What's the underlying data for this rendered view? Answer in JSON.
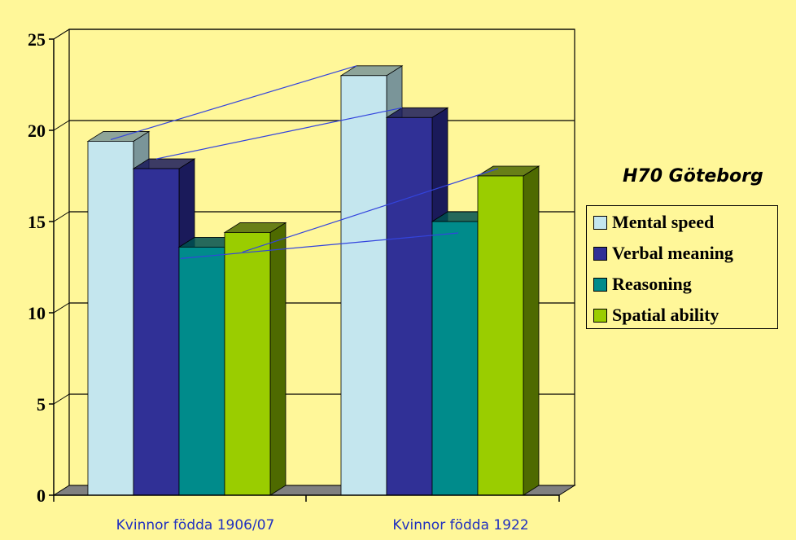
{
  "colors": {
    "background": "#FFF799",
    "gridline": "#000000",
    "trend_line": "#3344DD"
  },
  "chart_data": {
    "type": "bar",
    "title": "H70 Göteborg",
    "categories": [
      "Kvinnor födda 1906/07",
      "Kvinnor födda 1922"
    ],
    "ylim": [
      0,
      25
    ],
    "y_ticks": [
      "0",
      "5",
      "10",
      "15",
      "20",
      "25"
    ],
    "grid": true,
    "legend_position": "right",
    "style": "3d-clustered",
    "series": [
      {
        "name": "Mental speed",
        "values": [
          19.4,
          23.0
        ],
        "color": "#C4E6EE",
        "side_color": "#7A9599"
      },
      {
        "name": "Verbal meaning",
        "values": [
          17.9,
          20.7
        ],
        "color": "#303096",
        "side_color": "#1A1A5A"
      },
      {
        "name": "Reasoning",
        "values": [
          13.6,
          15.0
        ],
        "color": "#008B8B",
        "side_color": "#005050"
      },
      {
        "name": "Spatial ability",
        "values": [
          14.4,
          17.5
        ],
        "color": "#9ACD00",
        "side_color": "#4E6A00"
      }
    ]
  }
}
